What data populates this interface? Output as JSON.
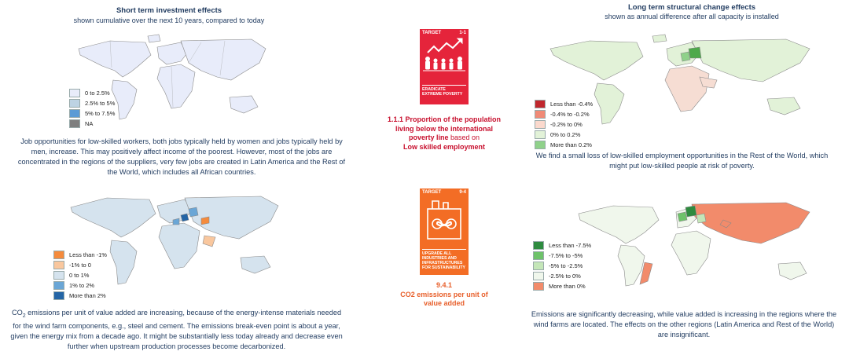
{
  "left_header": {
    "title": "Short term investment effects",
    "subtitle": "shown cumulative over the next 10 years, compared to today"
  },
  "right_header": {
    "title": "Long term structural change effects",
    "subtitle": "shown as annual difference after all capacity is installed"
  },
  "legends": {
    "top_left": [
      {
        "label": "0 to 2.5%",
        "color": "#e8ecfa"
      },
      {
        "label": "2.5% to 5%",
        "color": "#bdd3e3"
      },
      {
        "label": "5% to 7.5%",
        "color": "#5b9bd5"
      },
      {
        "label": "NA",
        "color": "#7f7f7f"
      }
    ],
    "top_right": [
      {
        "label": "Less than -0.4%",
        "color": "#c0272d"
      },
      {
        "label": "-0.4% to -0.2%",
        "color": "#f08a76"
      },
      {
        "label": "-0.2% to 0%",
        "color": "#fbd9cd"
      },
      {
        "label": "0% to 0.2%",
        "color": "#e2f2d8"
      },
      {
        "label": "More than 0.2%",
        "color": "#8fd18a"
      }
    ],
    "bottom_left": [
      {
        "label": "Less than -1%",
        "color": "#f58b3c"
      },
      {
        "label": "-1% to 0",
        "color": "#f9c79e"
      },
      {
        "label": "0 to 1%",
        "color": "#d5e3ee"
      },
      {
        "label": "1% to 2%",
        "color": "#6aa6d6"
      },
      {
        "label": "More than 2%",
        "color": "#2465a6"
      }
    ],
    "bottom_right": [
      {
        "label": "Less than -7.5%",
        "color": "#2e8b3f"
      },
      {
        "label": "-7.5% to -5%",
        "color": "#6ec26a"
      },
      {
        "label": "-5% to -2.5%",
        "color": "#c4e6b8"
      },
      {
        "label": "-2.5% to 0%",
        "color": "#f0f7ec"
      },
      {
        "label": "More than 0%",
        "color": "#f28b6b"
      }
    ]
  },
  "texts": {
    "top_left": "Job opportunities for low-skilled workers, both jobs typically held by women and jobs typically held by men, increase. This may positively affect income of the poorest. However, most of the jobs are concentrated in the regions of the suppliers, very few jobs are created in Latin America and the Rest of the World, which includes all African countries.",
    "top_right": "We find a small loss of low-skilled employment opportunities in the Rest of the World, which might put low-skilled people at risk of poverty.",
    "bottom_left_prefix": "CO",
    "bottom_left_sub": "2",
    "bottom_left": " emissions per unit of value added are increasing, because of the energy-intense materials needed for the wind farm components, e.g., steel and cement. The emissions break-even point is about a year, given the energy mix from a decade ago. It might be substantially less today already and decrease even further when upstream production processes become decarbonized.",
    "bottom_right": "Emissions are significantly decreasing, while value added is increasing in the regions where the wind farms are located. The effects on the other regions (Latin America and Rest of the World) are insignificant."
  },
  "sdg1": {
    "target_label": "TARGET",
    "target_num": "1-1",
    "caption": "ERADICATE EXTREME POVERTY",
    "color": "#e5243b",
    "indicator_line1": "1.1.1 Proportion of the population",
    "indicator_line2": "living below the international",
    "indicator_line3a": "poverty line",
    "indicator_line3b": " based on",
    "indicator_line4": "Low skilled employment",
    "indicator_color": "#c8102e"
  },
  "sdg9": {
    "target_label": "TARGET",
    "target_num": "9-4",
    "caption": "UPGRADE ALL INDUSTRIES AND INFRASTRUCTURES FOR SUSTAINABILITY",
    "color": "#f36d25",
    "indicator_line1": "9.4.1",
    "indicator_line2": "CO2 emissions per unit of",
    "indicator_line3": "value added",
    "indicator_color": "#e8602c"
  },
  "map_colors": {
    "base_light": "#e8ecfa",
    "base_white": "#ffffff",
    "outline": "#8a8a8a"
  }
}
